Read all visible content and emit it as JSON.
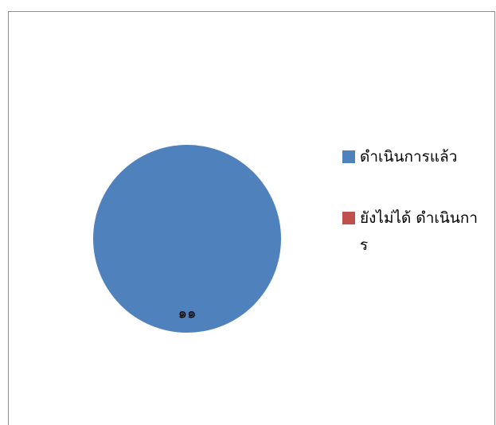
{
  "chart_data": {
    "type": "pie",
    "title": "",
    "categories": [
      "ดำเนินการแล้ว",
      "ยังไม่ได้ ดำเนินการ"
    ],
    "values": [
      11,
      0
    ],
    "value_labels": [
      "๑๑",
      ""
    ],
    "colors": [
      "#4f81bd",
      "#c0504d"
    ],
    "legend": {
      "position": "right",
      "entries": [
        "ดำเนินการแล้ว",
        "ยังไม่ได้ ดำเนินการ"
      ]
    }
  }
}
